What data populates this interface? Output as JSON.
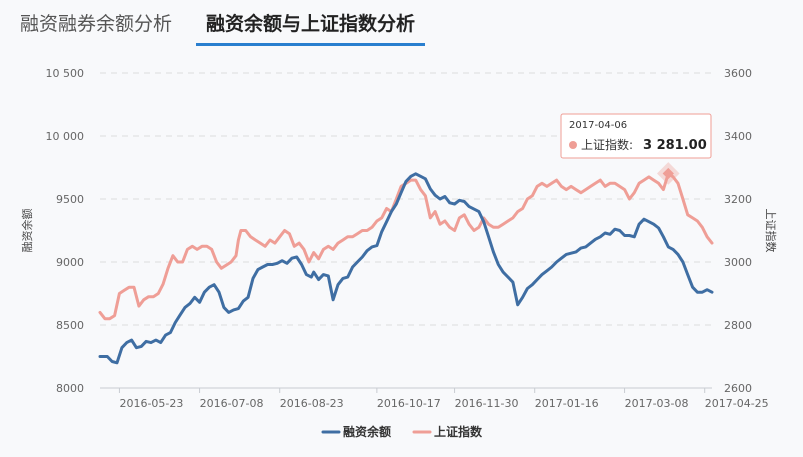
{
  "tabs": [
    {
      "label": "融资融券余额分析",
      "active": false
    },
    {
      "label": "融资余额与上证指数分析",
      "active": true
    }
  ],
  "colors": {
    "series1": "#3f6ea3",
    "series2": "#ef9e96",
    "accent": "#2a7fcf",
    "grid": "#dddddd"
  },
  "tooltip": {
    "date": "2017-04-06",
    "series_name": "上证指数",
    "value_text": "3 281.00",
    "x": 226,
    "series_index": 1
  },
  "chart_data": {
    "type": "line",
    "title": "",
    "ylabel_left": "融资余额",
    "ylabel_right": "上证指数",
    "ylim_left": [
      8000,
      10500
    ],
    "ylim_right": [
      2600,
      3600
    ],
    "yticks_left": [
      "8000",
      "8500",
      "9000",
      "9500",
      "10 000",
      "10 500"
    ],
    "yticks_right": [
      "2600",
      "2800",
      "3000",
      "3200",
      "3400",
      "3600"
    ],
    "x_ticks": [
      {
        "label": "2016-05-23",
        "x": 0
      },
      {
        "label": "2016-07-08",
        "x": 33
      },
      {
        "label": "2016-08-23",
        "x": 66
      },
      {
        "label": "2016-10-17",
        "x": 106
      },
      {
        "label": "2016-11-30",
        "x": 138
      },
      {
        "label": "2017-01-16",
        "x": 171
      },
      {
        "label": "2017-03-08",
        "x": 208
      },
      {
        "label": "2017-04-25",
        "x": 241
      }
    ],
    "x_domain": [
      -8,
      244
    ],
    "grid": true,
    "legend_position": "bottom",
    "series": [
      {
        "name": "融资余额",
        "axis": "left",
        "points": [
          [
            -8,
            8250
          ],
          [
            -5,
            8250
          ],
          [
            -3,
            8210
          ],
          [
            -1,
            8200
          ],
          [
            1,
            8320
          ],
          [
            3,
            8360
          ],
          [
            5,
            8380
          ],
          [
            7,
            8320
          ],
          [
            9,
            8330
          ],
          [
            11,
            8370
          ],
          [
            13,
            8360
          ],
          [
            15,
            8380
          ],
          [
            17,
            8360
          ],
          [
            19,
            8420
          ],
          [
            21,
            8440
          ],
          [
            23,
            8520
          ],
          [
            25,
            8580
          ],
          [
            27,
            8640
          ],
          [
            29,
            8670
          ],
          [
            31,
            8720
          ],
          [
            33,
            8680
          ],
          [
            35,
            8760
          ],
          [
            37,
            8800
          ],
          [
            39,
            8820
          ],
          [
            41,
            8760
          ],
          [
            43,
            8640
          ],
          [
            45,
            8600
          ],
          [
            47,
            8620
          ],
          [
            49,
            8630
          ],
          [
            51,
            8690
          ],
          [
            53,
            8720
          ],
          [
            55,
            8870
          ],
          [
            57,
            8940
          ],
          [
            59,
            8960
          ],
          [
            61,
            8980
          ],
          [
            63,
            8980
          ],
          [
            65,
            8990
          ],
          [
            67,
            9010
          ],
          [
            69,
            8990
          ],
          [
            71,
            9030
          ],
          [
            73,
            9040
          ],
          [
            75,
            8980
          ],
          [
            77,
            8900
          ],
          [
            79,
            8880
          ],
          [
            80,
            8920
          ],
          [
            82,
            8860
          ],
          [
            84,
            8900
          ],
          [
            86,
            8890
          ],
          [
            88,
            8700
          ],
          [
            90,
            8820
          ],
          [
            92,
            8870
          ],
          [
            94,
            8880
          ],
          [
            96,
            8960
          ],
          [
            98,
            9000
          ],
          [
            100,
            9040
          ],
          [
            102,
            9090
          ],
          [
            104,
            9120
          ],
          [
            106,
            9130
          ],
          [
            108,
            9240
          ],
          [
            110,
            9320
          ],
          [
            112,
            9400
          ],
          [
            114,
            9460
          ],
          [
            116,
            9550
          ],
          [
            118,
            9640
          ],
          [
            120,
            9680
          ],
          [
            122,
            9700
          ],
          [
            124,
            9680
          ],
          [
            126,
            9660
          ],
          [
            128,
            9580
          ],
          [
            130,
            9530
          ],
          [
            132,
            9500
          ],
          [
            134,
            9520
          ],
          [
            136,
            9470
          ],
          [
            138,
            9460
          ],
          [
            140,
            9490
          ],
          [
            142,
            9480
          ],
          [
            144,
            9440
          ],
          [
            146,
            9420
          ],
          [
            148,
            9400
          ],
          [
            150,
            9320
          ],
          [
            152,
            9200
          ],
          [
            154,
            9080
          ],
          [
            156,
            8980
          ],
          [
            158,
            8920
          ],
          [
            160,
            8880
          ],
          [
            162,
            8840
          ],
          [
            164,
            8660
          ],
          [
            166,
            8720
          ],
          [
            168,
            8790
          ],
          [
            170,
            8820
          ],
          [
            172,
            8860
          ],
          [
            174,
            8900
          ],
          [
            176,
            8930
          ],
          [
            178,
            8960
          ],
          [
            180,
            9000
          ],
          [
            182,
            9030
          ],
          [
            184,
            9060
          ],
          [
            186,
            9070
          ],
          [
            188,
            9080
          ],
          [
            190,
            9110
          ],
          [
            192,
            9120
          ],
          [
            194,
            9150
          ],
          [
            196,
            9180
          ],
          [
            198,
            9200
          ],
          [
            200,
            9230
          ],
          [
            202,
            9220
          ],
          [
            204,
            9260
          ],
          [
            206,
            9250
          ],
          [
            208,
            9210
          ],
          [
            210,
            9210
          ],
          [
            212,
            9200
          ],
          [
            214,
            9300
          ],
          [
            216,
            9340
          ],
          [
            218,
            9320
          ],
          [
            220,
            9300
          ],
          [
            222,
            9270
          ],
          [
            224,
            9200
          ],
          [
            226,
            9120
          ],
          [
            228,
            9100
          ],
          [
            230,
            9060
          ],
          [
            232,
            9000
          ],
          [
            234,
            8900
          ],
          [
            236,
            8800
          ],
          [
            238,
            8760
          ],
          [
            240,
            8760
          ],
          [
            242,
            8780
          ],
          [
            244,
            8760
          ]
        ]
      },
      {
        "name": "上证指数",
        "axis": "right",
        "points": [
          [
            -8,
            2840
          ],
          [
            -6,
            2820
          ],
          [
            -4,
            2820
          ],
          [
            -2,
            2830
          ],
          [
            0,
            2900
          ],
          [
            2,
            2910
          ],
          [
            4,
            2920
          ],
          [
            6,
            2920
          ],
          [
            8,
            2860
          ],
          [
            10,
            2880
          ],
          [
            12,
            2890
          ],
          [
            14,
            2890
          ],
          [
            16,
            2900
          ],
          [
            18,
            2930
          ],
          [
            20,
            2980
          ],
          [
            22,
            3020
          ],
          [
            24,
            3000
          ],
          [
            26,
            3000
          ],
          [
            28,
            3040
          ],
          [
            30,
            3050
          ],
          [
            32,
            3040
          ],
          [
            34,
            3050
          ],
          [
            36,
            3050
          ],
          [
            38,
            3040
          ],
          [
            40,
            3000
          ],
          [
            42,
            2980
          ],
          [
            44,
            2990
          ],
          [
            46,
            3000
          ],
          [
            48,
            3020
          ],
          [
            49,
            3070
          ],
          [
            50,
            3100
          ],
          [
            52,
            3100
          ],
          [
            54,
            3080
          ],
          [
            56,
            3070
          ],
          [
            58,
            3060
          ],
          [
            60,
            3050
          ],
          [
            62,
            3070
          ],
          [
            64,
            3060
          ],
          [
            66,
            3080
          ],
          [
            68,
            3100
          ],
          [
            70,
            3090
          ],
          [
            72,
            3050
          ],
          [
            74,
            3060
          ],
          [
            76,
            3040
          ],
          [
            78,
            3000
          ],
          [
            80,
            3030
          ],
          [
            82,
            3010
          ],
          [
            84,
            3040
          ],
          [
            86,
            3050
          ],
          [
            88,
            3040
          ],
          [
            90,
            3060
          ],
          [
            92,
            3070
          ],
          [
            94,
            3080
          ],
          [
            96,
            3080
          ],
          [
            98,
            3090
          ],
          [
            100,
            3100
          ],
          [
            102,
            3100
          ],
          [
            104,
            3110
          ],
          [
            106,
            3130
          ],
          [
            108,
            3140
          ],
          [
            110,
            3170
          ],
          [
            112,
            3160
          ],
          [
            114,
            3200
          ],
          [
            116,
            3240
          ],
          [
            118,
            3250
          ],
          [
            120,
            3260
          ],
          [
            122,
            3260
          ],
          [
            124,
            3230
          ],
          [
            126,
            3210
          ],
          [
            128,
            3140
          ],
          [
            130,
            3160
          ],
          [
            132,
            3120
          ],
          [
            134,
            3130
          ],
          [
            136,
            3110
          ],
          [
            138,
            3100
          ],
          [
            140,
            3140
          ],
          [
            142,
            3150
          ],
          [
            144,
            3120
          ],
          [
            146,
            3100
          ],
          [
            148,
            3110
          ],
          [
            150,
            3140
          ],
          [
            152,
            3120
          ],
          [
            154,
            3110
          ],
          [
            156,
            3110
          ],
          [
            158,
            3120
          ],
          [
            160,
            3130
          ],
          [
            162,
            3140
          ],
          [
            164,
            3160
          ],
          [
            166,
            3170
          ],
          [
            168,
            3200
          ],
          [
            170,
            3210
          ],
          [
            172,
            3240
          ],
          [
            174,
            3250
          ],
          [
            176,
            3240
          ],
          [
            178,
            3250
          ],
          [
            180,
            3260
          ],
          [
            182,
            3240
          ],
          [
            184,
            3230
          ],
          [
            186,
            3240
          ],
          [
            188,
            3230
          ],
          [
            190,
            3220
          ],
          [
            192,
            3230
          ],
          [
            194,
            3240
          ],
          [
            196,
            3250
          ],
          [
            198,
            3260
          ],
          [
            200,
            3240
          ],
          [
            202,
            3250
          ],
          [
            204,
            3250
          ],
          [
            206,
            3240
          ],
          [
            208,
            3230
          ],
          [
            210,
            3200
          ],
          [
            212,
            3220
          ],
          [
            214,
            3250
          ],
          [
            216,
            3260
          ],
          [
            218,
            3270
          ],
          [
            220,
            3260
          ],
          [
            222,
            3250
          ],
          [
            224,
            3230
          ],
          [
            226,
            3281
          ],
          [
            228,
            3270
          ],
          [
            230,
            3250
          ],
          [
            232,
            3200
          ],
          [
            234,
            3150
          ],
          [
            236,
            3140
          ],
          [
            238,
            3130
          ],
          [
            240,
            3110
          ],
          [
            242,
            3080
          ],
          [
            244,
            3060
          ]
        ]
      }
    ]
  }
}
